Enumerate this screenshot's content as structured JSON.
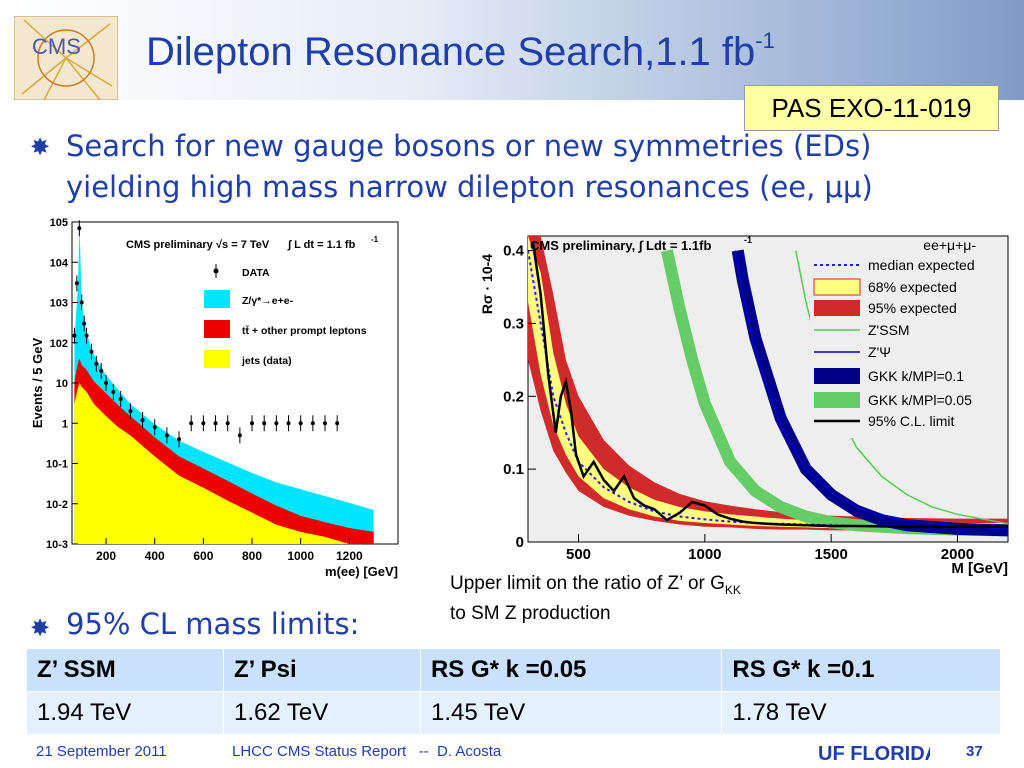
{
  "slide": {
    "title": "Dilepton Resonance Search,1.1 fb",
    "title_sup": "-1",
    "badge": "PAS EXO-11-019",
    "bullet1": "Search for new gauge bosons or new symmetries (EDs) yielding high mass narrow dilepton resonances (ee, μμ)",
    "bullet2": "95% CL mass limits:",
    "caption": "Upper limit on the ratio of Z’ or G",
    "caption_sub": "KK",
    "caption2": "to SM Z production",
    "logo_text": "CMS"
  },
  "table": {
    "headers": [
      "Z’ SSM",
      "Z’ Psi",
      "RS G* k =0.05",
      "RS G* k =0.1"
    ],
    "values": [
      "1.94 TeV",
      "1.62 TeV",
      "1.45 TeV",
      "1.78 TeV"
    ]
  },
  "footer": {
    "date": "21 September 2011",
    "report": "LHCC CMS Status Report   --  D. Acosta",
    "page": "37",
    "uf_logo": "UF FLORIDA"
  },
  "colors": {
    "title_blue": "#1f3ea8",
    "badge_bg": "#ffffa6",
    "table_head": "#c9e1fb",
    "table_row": "#e4f0fc"
  },
  "chart_data": [
    {
      "type": "histogram",
      "title": "CMS preliminary",
      "energy": "√s = 7 TeV",
      "lumi": "∫ L dt = 1.1 fb",
      "lumi_sup": "-1",
      "xlabel": "m(ee) [GeV]",
      "ylabel": "Events / 5 GeV",
      "xlim": [
        60,
        1400
      ],
      "ylim": [
        0.001,
        100000
      ],
      "yscale": "log",
      "xticks": [
        "200",
        "400",
        "600",
        "800",
        "1000",
        "1200"
      ],
      "yticks": [
        "10-3",
        "10-2",
        "10-1",
        "1",
        "10",
        "102",
        "103",
        "104",
        "105"
      ],
      "legend": [
        "DATA",
        "Z/γ*→e+e-",
        "tt̄ + other prompt leptons",
        "jets (data)"
      ],
      "series_colors": {
        "Z": "#00e5ff",
        "ttbar": "#ee0000",
        "jets": "#ffff00"
      },
      "mass_points": [
        70,
        85,
        91,
        100,
        120,
        150,
        200,
        250,
        300,
        400,
        500,
        600,
        700,
        800,
        900,
        1000,
        1100,
        1200,
        1300
      ],
      "z_stack": [
        100,
        3000,
        90000,
        800,
        150,
        40,
        10,
        4,
        1.5,
        0.5,
        0.22,
        0.12,
        0.07,
        0.04,
        0.025,
        0.018,
        0.012,
        0.008,
        0.005
      ],
      "ttbar_stack": [
        8,
        25,
        30,
        20,
        15,
        8,
        4,
        2,
        1,
        0.3,
        0.1,
        0.05,
        0.025,
        0.012,
        0.006,
        0.003,
        0.002,
        0.0015,
        0.001
      ],
      "jets_stack": [
        3,
        8,
        10,
        8,
        6,
        3,
        1.5,
        0.8,
        0.5,
        0.15,
        0.05,
        0.025,
        0.012,
        0.006,
        0.003,
        0.002,
        0.0015,
        0.001,
        0.001
      ],
      "data_x": [
        70,
        80,
        90,
        100,
        110,
        120,
        140,
        160,
        180,
        200,
        230,
        260,
        300,
        350,
        400,
        450,
        500,
        550,
        600,
        650,
        700,
        750,
        800,
        850,
        900,
        950,
        1000,
        1050,
        1100,
        1150
      ],
      "data_y": [
        150,
        3000,
        70000,
        1000,
        300,
        150,
        60,
        30,
        20,
        10,
        6,
        4,
        2,
        1.2,
        0.8,
        0.5,
        0.4,
        1,
        1,
        1,
        1,
        0.5,
        1,
        1,
        1,
        1,
        1,
        1,
        1,
        1
      ]
    },
    {
      "type": "line",
      "title": "CMS preliminary, ∫ Ldt = 1.1fb",
      "title_sup": "-1",
      "channel": "ee+μ+μ-",
      "xlabel": "M [GeV]",
      "ylabel": "Rσ · 10-4",
      "xlim": [
        300,
        2200
      ],
      "ylim": [
        0,
        0.42
      ],
      "xticks": [
        "500",
        "1000",
        "1500",
        "2000"
      ],
      "yticks": [
        "0",
        "0.1",
        "0.2",
        "0.3",
        "0.4"
      ],
      "legend": [
        "median expected",
        "68% expected",
        "95% expected",
        "Z'SSM",
        "Z'Ψ",
        "GKK k/MPl=0.1",
        "GKK k/MPl=0.05",
        "95% C.L. limit"
      ],
      "x": [
        300,
        350,
        400,
        450,
        500,
        600,
        700,
        800,
        900,
        1000,
        1100,
        1200,
        1300,
        1400,
        1500,
        1600,
        1700,
        1800,
        2000,
        2200
      ],
      "median_expected": [
        0.4,
        0.3,
        0.2,
        0.15,
        0.11,
        0.075,
        0.055,
        0.042,
        0.035,
        0.031,
        0.028,
        0.026,
        0.025,
        0.024,
        0.023,
        0.022,
        0.022,
        0.021,
        0.021,
        0.021
      ],
      "band68_lo": [
        0.33,
        0.23,
        0.16,
        0.12,
        0.09,
        0.06,
        0.045,
        0.035,
        0.029,
        0.026,
        0.024,
        0.022,
        0.021,
        0.02,
        0.019,
        0.019,
        0.018,
        0.018,
        0.018,
        0.018
      ],
      "band68_hi": [
        0.46,
        0.37,
        0.26,
        0.19,
        0.145,
        0.1,
        0.075,
        0.058,
        0.048,
        0.042,
        0.038,
        0.035,
        0.032,
        0.03,
        0.029,
        0.028,
        0.027,
        0.026,
        0.026,
        0.026
      ],
      "band95_lo": [
        0.25,
        0.18,
        0.125,
        0.095,
        0.07,
        0.048,
        0.036,
        0.029,
        0.024,
        0.021,
        0.02,
        0.018,
        0.017,
        0.017,
        0.016,
        0.016,
        0.015,
        0.015,
        0.015,
        0.015
      ],
      "band95_hi": [
        0.55,
        0.46,
        0.34,
        0.25,
        0.2,
        0.14,
        0.105,
        0.082,
        0.066,
        0.056,
        0.05,
        0.045,
        0.041,
        0.038,
        0.036,
        0.035,
        0.034,
        0.033,
        0.032,
        0.032
      ],
      "observed_x": [
        320,
        350,
        380,
        410,
        430,
        450,
        470,
        490,
        520,
        560,
        600,
        640,
        680,
        720,
        760,
        800,
        850,
        900,
        950,
        1000,
        1050,
        1100,
        1150,
        1200,
        1300,
        1400,
        1500,
        1600,
        1800,
        2000,
        2200
      ],
      "observed": [
        0.41,
        0.34,
        0.23,
        0.15,
        0.2,
        0.22,
        0.18,
        0.12,
        0.09,
        0.11,
        0.085,
        0.07,
        0.09,
        0.06,
        0.05,
        0.045,
        0.03,
        0.04,
        0.055,
        0.05,
        0.038,
        0.032,
        0.028,
        0.026,
        0.024,
        0.023,
        0.022,
        0.022,
        0.021,
        0.021,
        0.021
      ],
      "zssm_x": [
        1360,
        1400,
        1450,
        1500,
        1600,
        1700,
        1800,
        1900,
        2000,
        2200
      ],
      "zssm": [
        0.4,
        0.33,
        0.26,
        0.2,
        0.13,
        0.09,
        0.065,
        0.048,
        0.038,
        0.025
      ],
      "zpsi_x": [
        1120,
        1150,
        1200,
        1300,
        1400,
        1500,
        1600,
        1700,
        1800,
        2000,
        2200
      ],
      "zpsi": [
        0.4,
        0.34,
        0.26,
        0.16,
        0.1,
        0.068,
        0.048,
        0.036,
        0.029,
        0.022,
        0.018
      ],
      "gkk01_x": [
        1130,
        1150,
        1200,
        1300,
        1400,
        1500,
        1600,
        1700,
        1800,
        2000,
        2200
      ],
      "gkk01": [
        0.4,
        0.36,
        0.28,
        0.17,
        0.1,
        0.065,
        0.043,
        0.03,
        0.023,
        0.018,
        0.016
      ],
      "gkk005_x": [
        850,
        900,
        950,
        1000,
        1100,
        1200,
        1300,
        1400,
        1500,
        1600,
        1800,
        2000,
        2200
      ],
      "gkk005": [
        0.4,
        0.32,
        0.25,
        0.19,
        0.11,
        0.07,
        0.048,
        0.035,
        0.027,
        0.023,
        0.019,
        0.017,
        0.016
      ]
    }
  ]
}
